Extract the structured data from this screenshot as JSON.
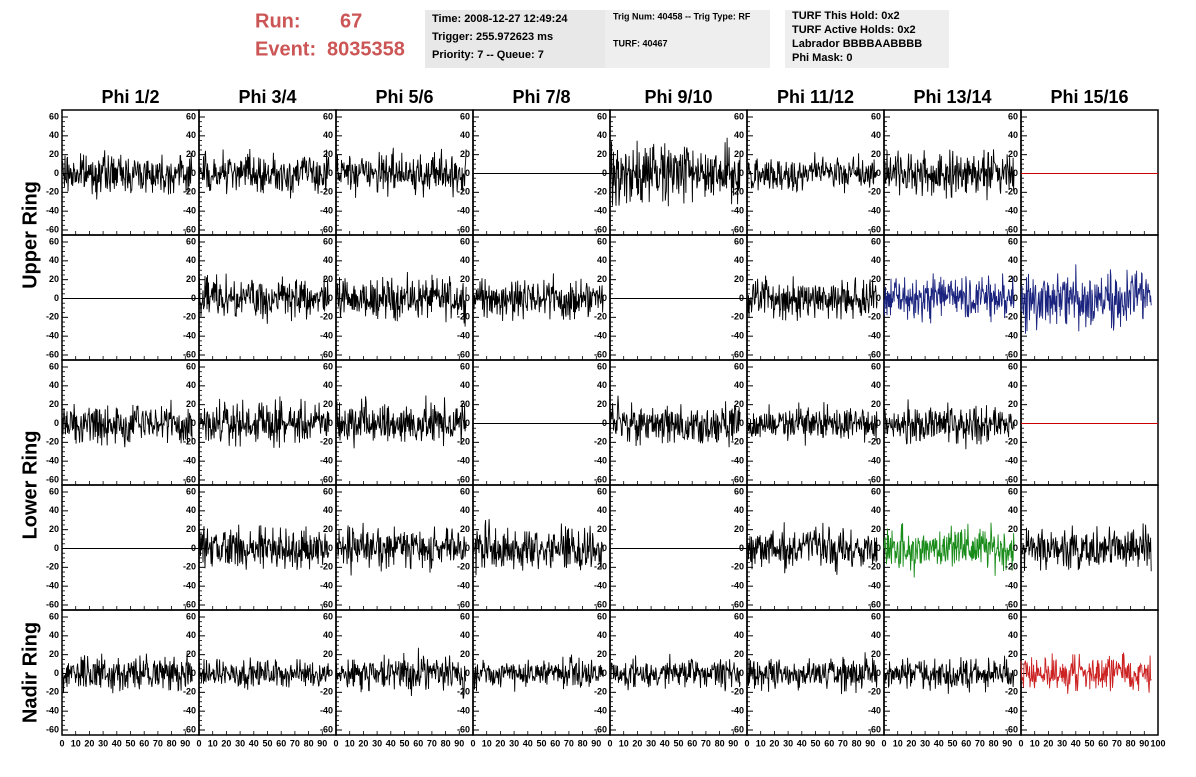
{
  "header": {
    "run_label": "Run:",
    "run": "67",
    "event_label": "Event:",
    "event": "8035358"
  },
  "info_boxes": [
    {
      "lines": [
        "Time: 2008-12-27 12:49:24",
        "Trigger: 255.972623 ms",
        "Priority: 7 -- Queue: 7"
      ]
    },
    {
      "lines": [
        "Trig Num: 40458 -- Trig Type: RF",
        "TURF: 40467"
      ]
    },
    {
      "lines": [
        "TURF This Hold: 0x2",
        "TURF Active Holds: 0x2",
        "Labrador BBBBAABBBB",
        "Phi Mask: 0"
      ],
      "highlight_line": 2,
      "highlight_color": "#e020e0"
    }
  ],
  "columns": [
    "Phi 1/2",
    "Phi 3/4",
    "Phi 5/6",
    "Phi 7/8",
    "Phi 9/10",
    "Phi 11/12",
    "Phi 13/14",
    "Phi 15/16"
  ],
  "rings": [
    {
      "label": "Upper Ring",
      "rows": [
        0,
        1
      ]
    },
    {
      "label": "Lower Ring",
      "rows": [
        2,
        3
      ]
    },
    {
      "label": "Nadir Ring",
      "rows": [
        4
      ]
    }
  ],
  "axes": {
    "ylim": [
      -60,
      60
    ],
    "yticks": [
      -60,
      -40,
      -20,
      0,
      20,
      40,
      60
    ],
    "xlim": [
      0,
      100
    ],
    "xticks": [
      0,
      10,
      20,
      30,
      40,
      50,
      60,
      70,
      80,
      90,
      100
    ]
  },
  "panels": [
    [
      {
        "color": "#000000",
        "amplitude": 14
      },
      {
        "color": "#000000",
        "amplitude": 15
      },
      {
        "color": "#000000",
        "amplitude": 15
      },
      {
        "color": "#000000",
        "amplitude": 0
      },
      {
        "color": "#000000",
        "amplitude": 22
      },
      {
        "color": "#000000",
        "amplitude": 12
      },
      {
        "color": "#000000",
        "amplitude": 16
      },
      {
        "color": "#cc0000",
        "amplitude": 0
      }
    ],
    [
      {
        "color": "#000000",
        "amplitude": 0
      },
      {
        "color": "#000000",
        "amplitude": 16
      },
      {
        "color": "#000000",
        "amplitude": 15
      },
      {
        "color": "#000000",
        "amplitude": 16
      },
      {
        "color": "#000000",
        "amplitude": 0
      },
      {
        "color": "#000000",
        "amplitude": 15
      },
      {
        "color": "#1a237e",
        "amplitude": 15
      },
      {
        "color": "#1a237e",
        "amplitude": 20
      }
    ],
    [
      {
        "color": "#000000",
        "amplitude": 15
      },
      {
        "color": "#000000",
        "amplitude": 15
      },
      {
        "color": "#000000",
        "amplitude": 16
      },
      {
        "color": "#000000",
        "amplitude": 0
      },
      {
        "color": "#000000",
        "amplitude": 15
      },
      {
        "color": "#000000",
        "amplitude": 12
      },
      {
        "color": "#000000",
        "amplitude": 14
      },
      {
        "color": "#cc0000",
        "amplitude": 0
      }
    ],
    [
      {
        "color": "#000000",
        "amplitude": 0
      },
      {
        "color": "#000000",
        "amplitude": 15
      },
      {
        "color": "#000000",
        "amplitude": 15
      },
      {
        "color": "#000000",
        "amplitude": 16
      },
      {
        "color": "#000000",
        "amplitude": 0
      },
      {
        "color": "#000000",
        "amplitude": 15
      },
      {
        "color": "#1a8c1a",
        "amplitude": 16
      },
      {
        "color": "#000000",
        "amplitude": 15
      }
    ],
    [
      {
        "color": "#000000",
        "amplitude": 14
      },
      {
        "color": "#000000",
        "amplitude": 10
      },
      {
        "color": "#000000",
        "amplitude": 14
      },
      {
        "color": "#000000",
        "amplitude": 11
      },
      {
        "color": "#000000",
        "amplitude": 11
      },
      {
        "color": "#000000",
        "amplitude": 12
      },
      {
        "color": "#000000",
        "amplitude": 12
      },
      {
        "color": "#cc2222",
        "amplitude": 14
      }
    ]
  ]
}
